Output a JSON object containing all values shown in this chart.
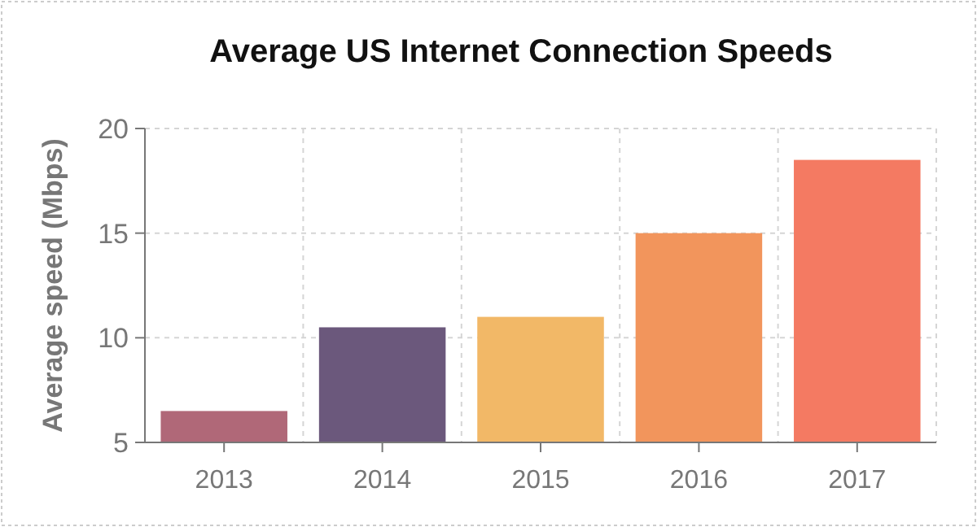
{
  "chart_data": {
    "type": "bar",
    "title": "Average US Internet Connection Speeds",
    "ylabel": "Average speed (Mbps)",
    "categories": [
      "2013",
      "2014",
      "2015",
      "2016",
      "2017"
    ],
    "values": [
      6.5,
      10.5,
      11.0,
      15.0,
      18.5
    ],
    "colors": [
      "#b06878",
      "#6b587c",
      "#f2b867",
      "#f2955c",
      "#f47a62"
    ],
    "ylim": [
      5,
      20
    ],
    "yticks": [
      5,
      10,
      15,
      20
    ],
    "grid": true
  }
}
